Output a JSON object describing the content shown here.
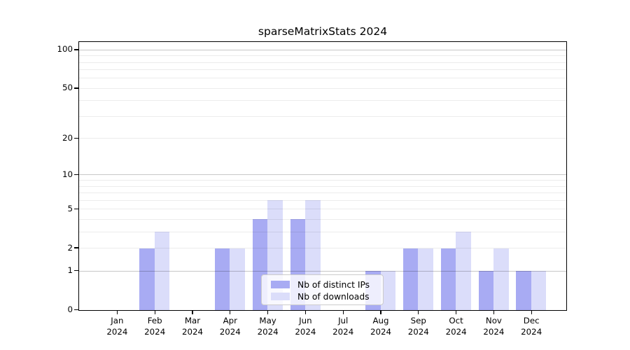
{
  "title": "sparseMatrixStats 2024",
  "chart_data": {
    "type": "bar",
    "title": "sparseMatrixStats 2024",
    "categories": [
      "Jan",
      "Feb",
      "Mar",
      "Apr",
      "May",
      "Jun",
      "Jul",
      "Aug",
      "Sep",
      "Oct",
      "Nov",
      "Dec"
    ],
    "x_sublabel": "2024",
    "series": [
      {
        "name": "Nb of distinct IPs",
        "color": "#a8abf3",
        "values": [
          0,
          2,
          0,
          2,
          4,
          4,
          0,
          1,
          2,
          2,
          1,
          1
        ]
      },
      {
        "name": "Nb of downloads",
        "color": "#dbddfa",
        "values": [
          0,
          3,
          0,
          2,
          6,
          6,
          0,
          1,
          2,
          3,
          2,
          1
        ]
      }
    ],
    "y_axis": {
      "scale": "log1p",
      "tick_labels": [
        0,
        1,
        2,
        5,
        10,
        20,
        50,
        100
      ],
      "major_gridlines": [
        1,
        10,
        100
      ],
      "minor_gridlines": [
        2,
        3,
        4,
        5,
        6,
        7,
        8,
        9,
        20,
        30,
        40,
        50,
        60,
        70,
        80,
        90
      ],
      "top_value": 114,
      "ylim": [
        0,
        114
      ]
    },
    "legend": {
      "position": "lower center"
    },
    "grid": true,
    "colors": {
      "major_grid": "rgba(0,0,0,0.22)",
      "minor_grid": "rgba(0,0,0,0.075)",
      "axis": "#000000",
      "background": "#ffffff"
    }
  }
}
